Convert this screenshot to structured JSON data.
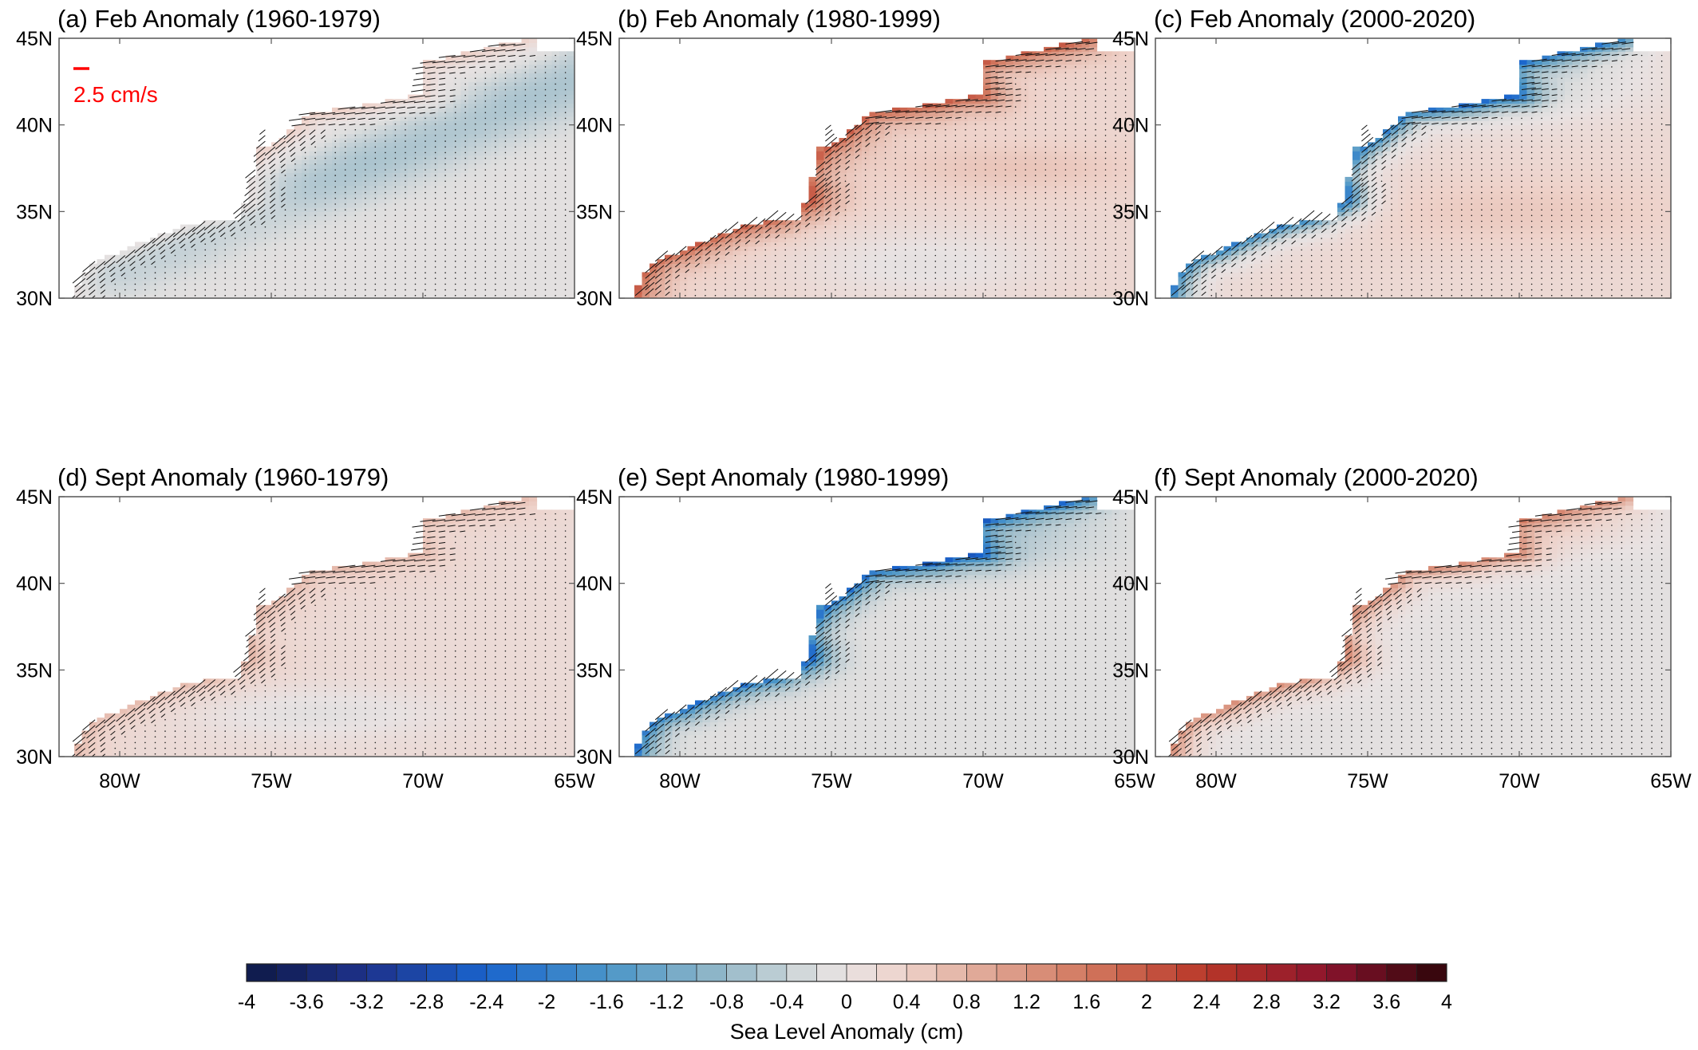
{
  "panels": [
    {
      "title": "(a) Feb Anomaly (1960-1979)",
      "pattern": "feb_60s"
    },
    {
      "title": "(b) Feb Anomaly (1980-1999)",
      "pattern": "feb_80s"
    },
    {
      "title": "(c) Feb Anomaly (2000-2020)",
      "pattern": "feb_00s"
    },
    {
      "title": "(d) Sept Anomaly (1960-1979)",
      "pattern": "sep_60s"
    },
    {
      "title": "(e) Sept Anomaly (1980-1999)",
      "pattern": "sep_80s"
    },
    {
      "title": "(f) Sept Anomaly (2000-2020)",
      "pattern": "sep_00s"
    }
  ],
  "axes": {
    "lon_range": [
      -82,
      -65
    ],
    "lat_range": [
      30,
      45
    ],
    "lon_ticks": [
      "80W",
      "75W",
      "70W",
      "65W"
    ],
    "lon_tick_values": [
      -80,
      -75,
      -70,
      -65
    ],
    "lat_ticks": [
      "45N",
      "40N",
      "35N",
      "30N"
    ],
    "lat_tick_values": [
      45,
      40,
      35,
      30
    ]
  },
  "reference_vector": {
    "label": "2.5 cm/s",
    "color": "#ff0000"
  },
  "colorbar": {
    "label": "Sea Level Anomaly (cm)",
    "min": -4,
    "max": 4,
    "step": 0.2,
    "tick_labels": [
      "-4",
      "-3.6",
      "-3.2",
      "-2.8",
      "-2.4",
      "-2",
      "-1.6",
      "-1.2",
      "-0.8",
      "-0.4",
      "0",
      "0.4",
      "0.8",
      "1.2",
      "1.6",
      "2",
      "2.4",
      "2.8",
      "3.2",
      "3.6",
      "4"
    ],
    "colormap": "blue-white-red (balance)"
  },
  "colors": {
    "land": "#ffffff",
    "axis": "#555555",
    "vector": "#111111"
  }
}
